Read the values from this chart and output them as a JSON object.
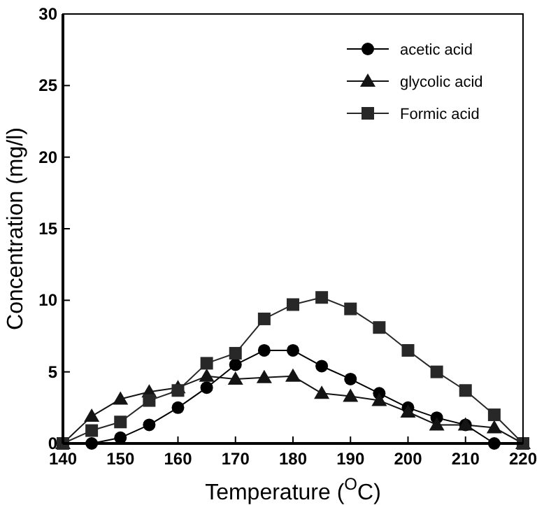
{
  "chart_data": {
    "type": "line",
    "xlabel": "Temperature ($^{O}$C)",
    "ylabel": "Concentration (mg/l)",
    "x": [
      140,
      145,
      150,
      155,
      160,
      165,
      170,
      175,
      180,
      185,
      190,
      195,
      200,
      205,
      210,
      215,
      220
    ],
    "series": [
      {
        "name": "acetic acid",
        "color": "#000000",
        "marker": "circle",
        "values": [
          0,
          0,
          0.4,
          1.3,
          2.5,
          3.9,
          5.5,
          6.5,
          6.5,
          5.4,
          4.5,
          3.5,
          2.5,
          1.8,
          1.3,
          0,
          0
        ]
      },
      {
        "name": "glycolic acid",
        "color": "#141414",
        "marker": "triangle",
        "values": [
          0,
          1.9,
          3.1,
          3.6,
          3.9,
          4.7,
          4.5,
          4.6,
          4.7,
          3.5,
          3.3,
          3.0,
          2.2,
          1.3,
          1.3,
          1.1,
          0
        ]
      },
      {
        "name": "Formic acid",
        "color": "#282828",
        "marker": "square",
        "values": [
          0,
          0.9,
          1.5,
          3.0,
          3.7,
          5.6,
          6.3,
          8.7,
          9.7,
          10.2,
          9.4,
          8.1,
          6.5,
          5.0,
          3.7,
          2.0,
          0
        ]
      }
    ],
    "xlim": [
      140,
      220
    ],
    "xticks": [
      140,
      150,
      160,
      170,
      180,
      190,
      200,
      210,
      220
    ],
    "ylim": [
      0,
      30
    ],
    "yticks": [
      0,
      5,
      10,
      15,
      20,
      25,
      30
    ],
    "grid": false,
    "legend": "top right",
    "line_style": "solid"
  }
}
